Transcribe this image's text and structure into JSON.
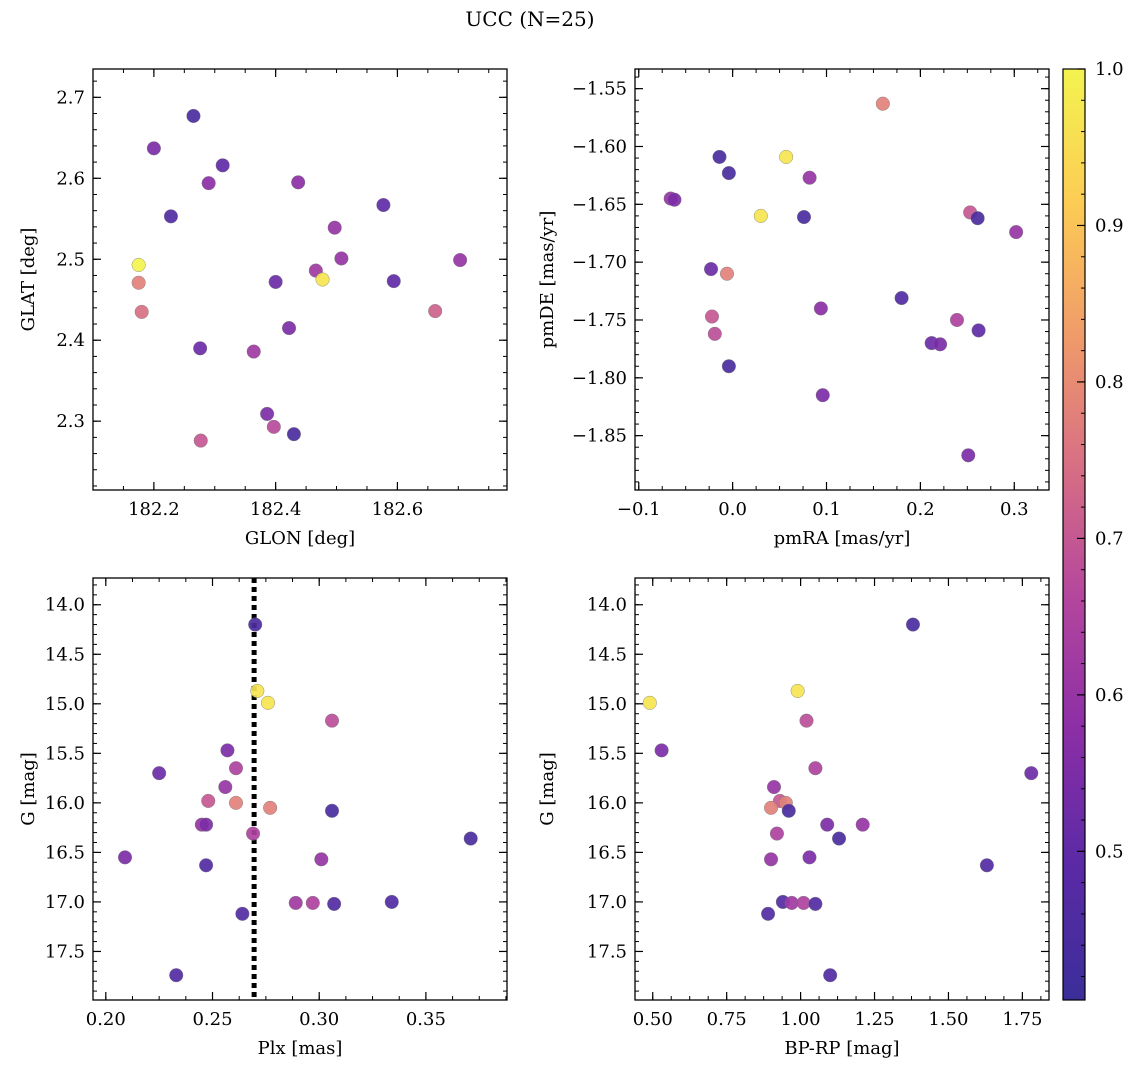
{
  "figure": {
    "title": "UCC (N=25)"
  },
  "chart_data": [
    {
      "type": "scatter",
      "id": "glon_glat",
      "xlabel": "GLON [deg]",
      "ylabel": "GLAT [deg]",
      "xlim": [
        182.1,
        182.78
      ],
      "ylim": [
        2.215,
        2.735
      ],
      "xticks": [
        182.2,
        182.4,
        182.6
      ],
      "xtick_labels": [
        "182.2",
        "182.4",
        "182.6"
      ],
      "yticks": [
        2.3,
        2.4,
        2.5,
        2.6,
        2.7
      ],
      "ytick_labels": [
        "2.3",
        "2.4",
        "2.5",
        "2.6",
        "2.7"
      ],
      "points": [
        {
          "x": 182.265,
          "y": 2.677,
          "c": 0.45
        },
        {
          "x": 182.2,
          "y": 2.637,
          "c": 0.55
        },
        {
          "x": 182.313,
          "y": 2.616,
          "c": 0.5
        },
        {
          "x": 182.29,
          "y": 2.594,
          "c": 0.58
        },
        {
          "x": 182.437,
          "y": 2.595,
          "c": 0.58
        },
        {
          "x": 182.228,
          "y": 2.553,
          "c": 0.47
        },
        {
          "x": 182.577,
          "y": 2.567,
          "c": 0.5
        },
        {
          "x": 182.497,
          "y": 2.539,
          "c": 0.6
        },
        {
          "x": 182.508,
          "y": 2.501,
          "c": 0.6
        },
        {
          "x": 182.466,
          "y": 2.486,
          "c": 0.62
        },
        {
          "x": 182.477,
          "y": 2.475,
          "c": 0.97
        },
        {
          "x": 182.703,
          "y": 2.499,
          "c": 0.6
        },
        {
          "x": 182.175,
          "y": 2.493,
          "c": 1.0
        },
        {
          "x": 182.175,
          "y": 2.471,
          "c": 0.78
        },
        {
          "x": 182.18,
          "y": 2.435,
          "c": 0.75
        },
        {
          "x": 182.4,
          "y": 2.472,
          "c": 0.52
        },
        {
          "x": 182.594,
          "y": 2.473,
          "c": 0.5
        },
        {
          "x": 182.662,
          "y": 2.436,
          "c": 0.72
        },
        {
          "x": 182.422,
          "y": 2.415,
          "c": 0.55
        },
        {
          "x": 182.276,
          "y": 2.39,
          "c": 0.52
        },
        {
          "x": 182.364,
          "y": 2.386,
          "c": 0.62
        },
        {
          "x": 182.386,
          "y": 2.309,
          "c": 0.55
        },
        {
          "x": 182.397,
          "y": 2.293,
          "c": 0.67
        },
        {
          "x": 182.43,
          "y": 2.284,
          "c": 0.45
        },
        {
          "x": 182.277,
          "y": 2.276,
          "c": 0.7
        }
      ]
    },
    {
      "type": "scatter",
      "id": "pmra_pmde",
      "xlabel": "pmRA [mas/yr]",
      "ylabel": "pmDE [mas/yr]",
      "xlim": [
        -0.104,
        0.337
      ],
      "ylim": [
        -1.897,
        -1.533
      ],
      "xticks": [
        -0.1,
        0.0,
        0.1,
        0.2,
        0.3
      ],
      "xtick_labels": [
        "−0.1",
        "0.0",
        "0.1",
        "0.2",
        "0.3"
      ],
      "yticks": [
        -1.85,
        -1.8,
        -1.75,
        -1.7,
        -1.65,
        -1.6,
        -1.55
      ],
      "ytick_labels": [
        "−1.85",
        "−1.80",
        "−1.75",
        "−1.70",
        "−1.65",
        "−1.60",
        "−1.55"
      ],
      "points": [
        {
          "x": 0.16,
          "y": -1.563,
          "c": 0.78
        },
        {
          "x": -0.014,
          "y": -1.609,
          "c": 0.45
        },
        {
          "x": 0.057,
          "y": -1.609,
          "c": 0.97
        },
        {
          "x": -0.004,
          "y": -1.623,
          "c": 0.45
        },
        {
          "x": 0.082,
          "y": -1.627,
          "c": 0.6
        },
        {
          "x": -0.066,
          "y": -1.645,
          "c": 0.6
        },
        {
          "x": -0.062,
          "y": -1.646,
          "c": 0.55
        },
        {
          "x": 0.03,
          "y": -1.66,
          "c": 0.97
        },
        {
          "x": 0.076,
          "y": -1.661,
          "c": 0.45
        },
        {
          "x": 0.253,
          "y": -1.657,
          "c": 0.7
        },
        {
          "x": 0.261,
          "y": -1.662,
          "c": 0.45
        },
        {
          "x": 0.302,
          "y": -1.674,
          "c": 0.6
        },
        {
          "x": -0.023,
          "y": -1.706,
          "c": 0.52
        },
        {
          "x": -0.006,
          "y": -1.71,
          "c": 0.78
        },
        {
          "x": 0.18,
          "y": -1.731,
          "c": 0.47
        },
        {
          "x": 0.094,
          "y": -1.74,
          "c": 0.58
        },
        {
          "x": -0.022,
          "y": -1.747,
          "c": 0.7
        },
        {
          "x": 0.239,
          "y": -1.75,
          "c": 0.65
        },
        {
          "x": -0.019,
          "y": -1.762,
          "c": 0.68
        },
        {
          "x": 0.262,
          "y": -1.759,
          "c": 0.5
        },
        {
          "x": 0.212,
          "y": -1.77,
          "c": 0.52
        },
        {
          "x": 0.221,
          "y": -1.771,
          "c": 0.55
        },
        {
          "x": -0.004,
          "y": -1.79,
          "c": 0.45
        },
        {
          "x": 0.096,
          "y": -1.815,
          "c": 0.55
        },
        {
          "x": 0.251,
          "y": -1.867,
          "c": 0.55
        }
      ]
    },
    {
      "type": "scatter",
      "id": "plx_g",
      "xlabel": "Plx [mas]",
      "ylabel": "G [mag]",
      "xlim": [
        0.194,
        0.388
      ],
      "ylim": [
        17.99,
        13.73
      ],
      "xticks": [
        0.2,
        0.25,
        0.3,
        0.35
      ],
      "xtick_labels": [
        "0.20",
        "0.25",
        "0.30",
        "0.35"
      ],
      "yticks": [
        14.0,
        14.5,
        15.0,
        15.5,
        16.0,
        16.5,
        17.0,
        17.5
      ],
      "ytick_labels": [
        "14.0",
        "14.5",
        "15.0",
        "15.5",
        "16.0",
        "16.5",
        "17.0",
        "17.5"
      ],
      "vline": 0.2695,
      "points": [
        {
          "x": 0.27,
          "y": 14.2,
          "c": 0.45
        },
        {
          "x": 0.271,
          "y": 14.87,
          "c": 0.97
        },
        {
          "x": 0.276,
          "y": 14.99,
          "c": 0.97
        },
        {
          "x": 0.306,
          "y": 15.17,
          "c": 0.68
        },
        {
          "x": 0.257,
          "y": 15.47,
          "c": 0.55
        },
        {
          "x": 0.261,
          "y": 15.65,
          "c": 0.65
        },
        {
          "x": 0.225,
          "y": 15.7,
          "c": 0.52
        },
        {
          "x": 0.256,
          "y": 15.84,
          "c": 0.6
        },
        {
          "x": 0.248,
          "y": 15.98,
          "c": 0.7
        },
        {
          "x": 0.261,
          "y": 16.0,
          "c": 0.78
        },
        {
          "x": 0.277,
          "y": 16.05,
          "c": 0.78
        },
        {
          "x": 0.306,
          "y": 16.08,
          "c": 0.45
        },
        {
          "x": 0.245,
          "y": 16.22,
          "c": 0.6
        },
        {
          "x": 0.247,
          "y": 16.22,
          "c": 0.55
        },
        {
          "x": 0.269,
          "y": 16.31,
          "c": 0.65
        },
        {
          "x": 0.371,
          "y": 16.36,
          "c": 0.45
        },
        {
          "x": 0.209,
          "y": 16.55,
          "c": 0.55
        },
        {
          "x": 0.301,
          "y": 16.57,
          "c": 0.6
        },
        {
          "x": 0.247,
          "y": 16.63,
          "c": 0.47
        },
        {
          "x": 0.289,
          "y": 17.01,
          "c": 0.62
        },
        {
          "x": 0.297,
          "y": 17.01,
          "c": 0.65
        },
        {
          "x": 0.307,
          "y": 17.02,
          "c": 0.47
        },
        {
          "x": 0.334,
          "y": 17.0,
          "c": 0.47
        },
        {
          "x": 0.264,
          "y": 17.12,
          "c": 0.47
        },
        {
          "x": 0.233,
          "y": 17.74,
          "c": 0.47
        }
      ]
    },
    {
      "type": "scatter",
      "id": "bprp_g",
      "xlabel": "BP-RP [mag]",
      "ylabel": "G [mag]",
      "xlim": [
        0.44,
        1.84
      ],
      "ylim": [
        17.99,
        13.73
      ],
      "xticks": [
        0.5,
        0.75,
        1.0,
        1.25,
        1.5,
        1.75
      ],
      "xtick_labels": [
        "0.50",
        "0.75",
        "1.00",
        "1.25",
        "1.50",
        "1.75"
      ],
      "yticks": [
        14.0,
        14.5,
        15.0,
        15.5,
        16.0,
        16.5,
        17.0,
        17.5
      ],
      "ytick_labels": [
        "14.0",
        "14.5",
        "15.0",
        "15.5",
        "16.0",
        "16.5",
        "17.0",
        "17.5"
      ],
      "points": [
        {
          "x": 1.38,
          "y": 14.2,
          "c": 0.45
        },
        {
          "x": 0.99,
          "y": 14.87,
          "c": 0.97
        },
        {
          "x": 0.49,
          "y": 14.99,
          "c": 0.97
        },
        {
          "x": 1.02,
          "y": 15.17,
          "c": 0.68
        },
        {
          "x": 0.53,
          "y": 15.47,
          "c": 0.55
        },
        {
          "x": 1.05,
          "y": 15.65,
          "c": 0.65
        },
        {
          "x": 1.78,
          "y": 15.7,
          "c": 0.52
        },
        {
          "x": 0.91,
          "y": 15.84,
          "c": 0.6
        },
        {
          "x": 0.93,
          "y": 15.98,
          "c": 0.7
        },
        {
          "x": 0.95,
          "y": 16.0,
          "c": 0.78
        },
        {
          "x": 0.9,
          "y": 16.05,
          "c": 0.78
        },
        {
          "x": 0.96,
          "y": 16.08,
          "c": 0.45
        },
        {
          "x": 1.09,
          "y": 16.22,
          "c": 0.55
        },
        {
          "x": 1.21,
          "y": 16.22,
          "c": 0.6
        },
        {
          "x": 0.92,
          "y": 16.31,
          "c": 0.65
        },
        {
          "x": 1.13,
          "y": 16.36,
          "c": 0.45
        },
        {
          "x": 0.9,
          "y": 16.57,
          "c": 0.6
        },
        {
          "x": 1.03,
          "y": 16.55,
          "c": 0.55
        },
        {
          "x": 1.63,
          "y": 16.63,
          "c": 0.47
        },
        {
          "x": 0.94,
          "y": 17.0,
          "c": 0.47
        },
        {
          "x": 0.97,
          "y": 17.01,
          "c": 0.62
        },
        {
          "x": 1.01,
          "y": 17.01,
          "c": 0.65
        },
        {
          "x": 1.05,
          "y": 17.02,
          "c": 0.47
        },
        {
          "x": 0.89,
          "y": 17.12,
          "c": 0.47
        },
        {
          "x": 1.1,
          "y": 17.74,
          "c": 0.47
        }
      ]
    }
  ],
  "colorbar": {
    "colormap": "plasma",
    "range": [
      0.405,
      1.0
    ],
    "ticks": [
      0.5,
      0.6,
      0.7,
      0.8,
      0.9,
      1.0
    ],
    "tick_labels": [
      "0.5",
      "0.6",
      "0.7",
      "0.8",
      "0.9",
      "1.0"
    ],
    "stops": [
      "#3b2e99",
      "#5a2aa6",
      "#8a2ea6",
      "#b3459e",
      "#d76e84",
      "#f09b6a",
      "#fccc54",
      "#f3f34f"
    ]
  }
}
